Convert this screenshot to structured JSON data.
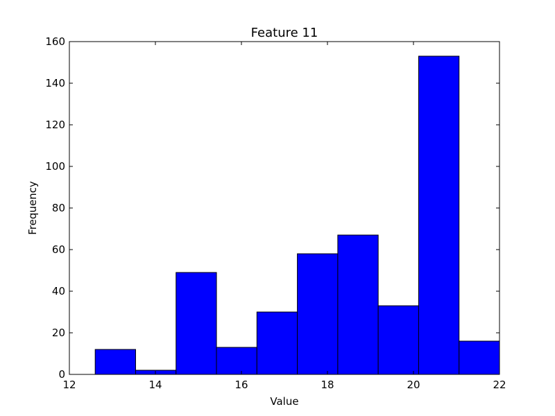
{
  "chart_data": {
    "type": "bar",
    "title": "Feature 11",
    "xlabel": "Value",
    "ylabel": "Frequency",
    "xlim": [
      12,
      22
    ],
    "ylim": [
      0,
      160
    ],
    "xticks": [
      12,
      14,
      16,
      18,
      20,
      22
    ],
    "yticks": [
      0,
      20,
      40,
      60,
      80,
      100,
      120,
      140,
      160
    ],
    "bin_edges": [
      12.6,
      13.54,
      14.48,
      15.42,
      16.36,
      17.3,
      18.24,
      19.18,
      20.12,
      21.06,
      22.0
    ],
    "values": [
      12,
      2,
      49,
      13,
      30,
      58,
      67,
      33,
      153,
      16
    ],
    "bar_color": "#0000ff",
    "edge_color": "#000000",
    "grid": false,
    "legend": "none"
  }
}
